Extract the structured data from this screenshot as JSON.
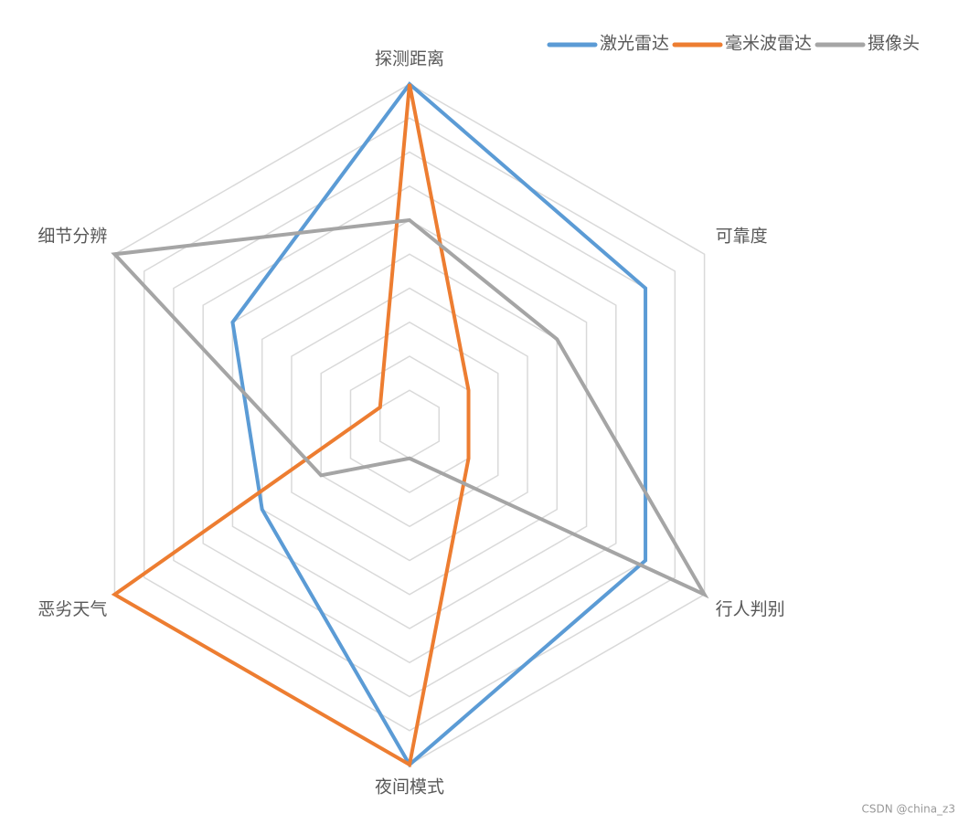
{
  "chart_data": {
    "type": "radar",
    "categories": [
      "探测距离",
      "可靠度",
      "行人判别",
      "夜间模式",
      "恶劣天气",
      "细节分辨"
    ],
    "series": [
      {
        "name": "激光雷达",
        "color": "#5b9bd5",
        "values": [
          10,
          8,
          8,
          10,
          5,
          6
        ]
      },
      {
        "name": "毫米波雷达",
        "color": "#ed7d31",
        "values": [
          10,
          2,
          2,
          10,
          10,
          1
        ]
      },
      {
        "name": "摄像头",
        "color": "#a5a5a5",
        "values": [
          6,
          5,
          10,
          1,
          3,
          10
        ]
      }
    ],
    "rlim": [
      0,
      10
    ],
    "rticks": [
      1,
      2,
      3,
      4,
      5,
      6,
      7,
      8,
      9,
      10
    ],
    "grid": true,
    "grid_color": "#d9d9d9",
    "legend": "top-right"
  },
  "watermark": "CSDN @china_z3"
}
